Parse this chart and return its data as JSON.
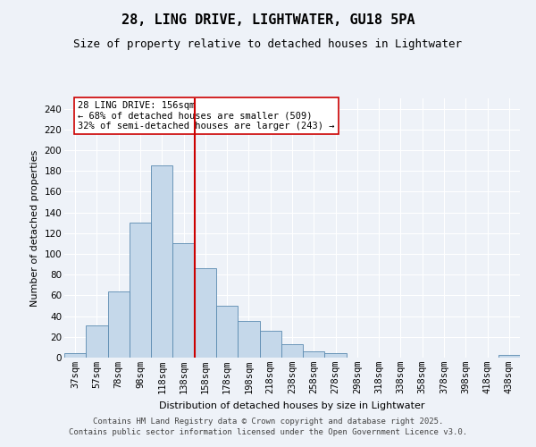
{
  "title": "28, LING DRIVE, LIGHTWATER, GU18 5PA",
  "subtitle": "Size of property relative to detached houses in Lightwater",
  "xlabel": "Distribution of detached houses by size in Lightwater",
  "ylabel": "Number of detached properties",
  "categories": [
    "37sqm",
    "57sqm",
    "78sqm",
    "98sqm",
    "118sqm",
    "138sqm",
    "158sqm",
    "178sqm",
    "198sqm",
    "218sqm",
    "238sqm",
    "258sqm",
    "278sqm",
    "298sqm",
    "318sqm",
    "338sqm",
    "358sqm",
    "378sqm",
    "398sqm",
    "418sqm",
    "438sqm"
  ],
  "values": [
    4,
    31,
    64,
    130,
    185,
    110,
    86,
    50,
    35,
    26,
    13,
    6,
    4,
    0,
    0,
    0,
    0,
    0,
    0,
    0,
    3
  ],
  "bar_color": "#c5d8ea",
  "bar_edge_color": "#5a8ab0",
  "vline_color": "#cc0000",
  "annotation_text": "28 LING DRIVE: 156sqm\n← 68% of detached houses are smaller (509)\n32% of semi-detached houses are larger (243) →",
  "annotation_box_color": "#cc0000",
  "ylim": [
    0,
    250
  ],
  "yticks": [
    0,
    20,
    40,
    60,
    80,
    100,
    120,
    140,
    160,
    180,
    200,
    220,
    240
  ],
  "background_color": "#eef2f8",
  "grid_color": "#ffffff",
  "footer": "Contains HM Land Registry data © Crown copyright and database right 2025.\nContains public sector information licensed under the Open Government Licence v3.0.",
  "title_fontsize": 11,
  "subtitle_fontsize": 9,
  "axis_label_fontsize": 8,
  "tick_fontsize": 7.5,
  "annotation_fontsize": 7.5,
  "footer_fontsize": 6.5
}
